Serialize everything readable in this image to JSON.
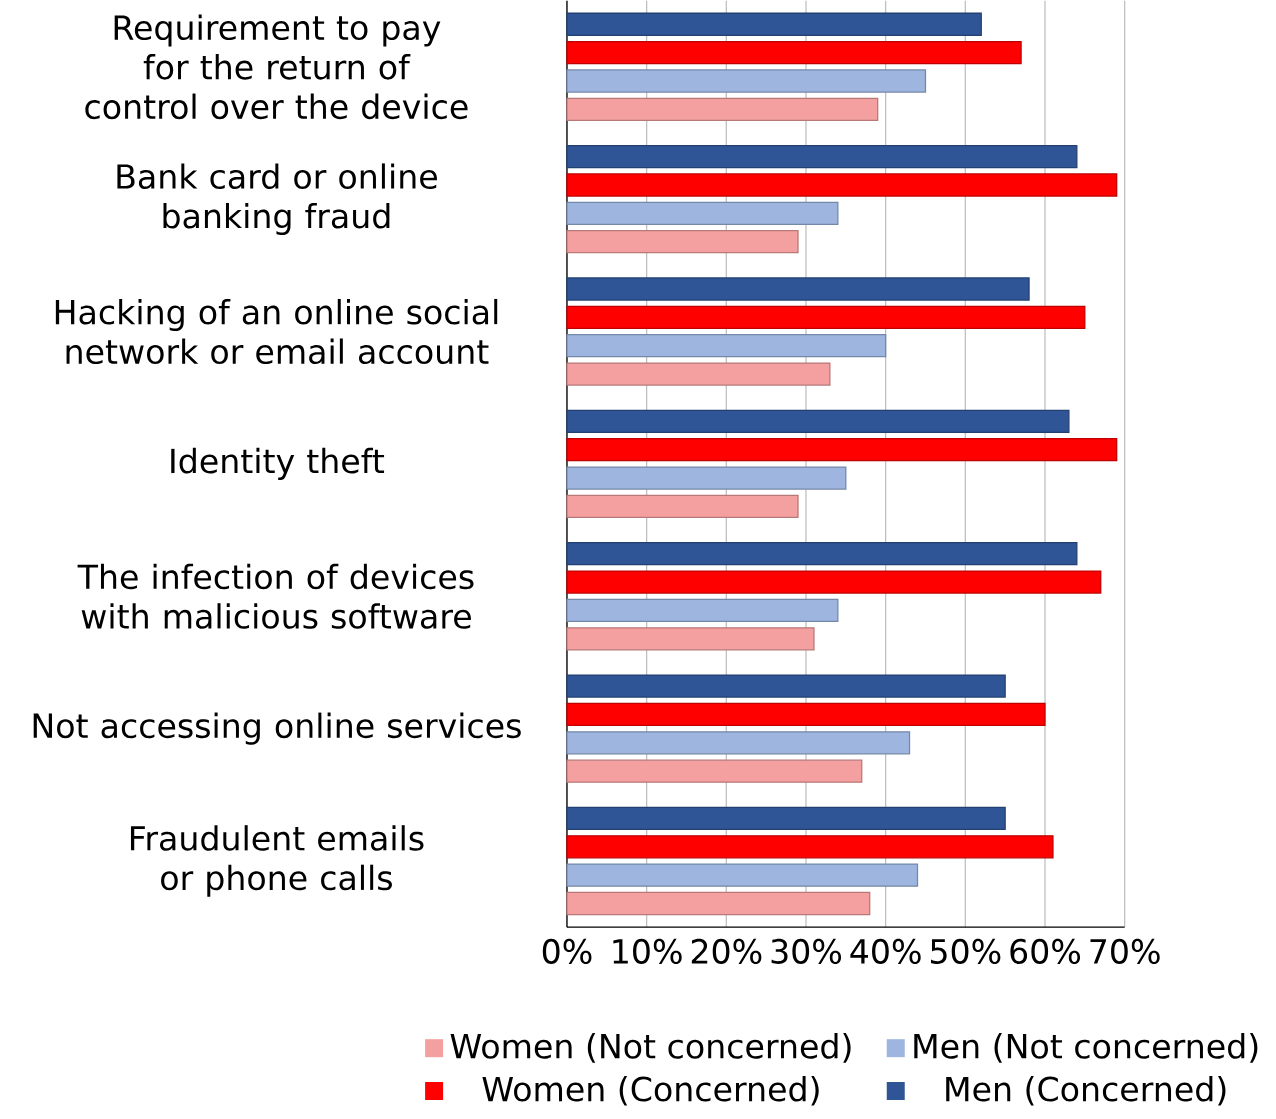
{
  "chart_data": {
    "type": "bar",
    "orientation": "horizontal",
    "categories": [
      "Requirement to pay for the return of control over the device",
      "Bank card or online banking fraud",
      "Hacking of an online social network or email account",
      "Identity theft",
      "The infection of devices with malicious software",
      "Not accessing online services",
      "Fraudulent emails or phone calls"
    ],
    "series": [
      {
        "name": "Women  (Not concerned)",
        "color": "#f4a0a0",
        "values": [
          39,
          29,
          33,
          29,
          31,
          37,
          38
        ]
      },
      {
        "name": "Men (Not concerned)",
        "color": "#9db5df",
        "values": [
          45,
          34,
          40,
          35,
          34,
          43,
          44
        ]
      },
      {
        "name": "Women (Concerned)",
        "color": "#ff0000",
        "values": [
          57,
          69,
          65,
          69,
          67,
          60,
          61
        ]
      },
      {
        "name": "Men (Concerned)",
        "color": "#2f5597",
        "values": [
          52,
          64,
          58,
          63,
          64,
          55,
          55
        ]
      }
    ],
    "xlim": [
      0,
      70
    ],
    "xticks": [
      {
        "value": 0,
        "label": "0%"
      },
      {
        "value": 10,
        "label": "10%"
      },
      {
        "value": 20,
        "label": "20%"
      },
      {
        "value": 30,
        "label": "30%"
      },
      {
        "value": 40,
        "label": "40%"
      },
      {
        "value": 50,
        "label": "50%"
      },
      {
        "value": 60,
        "label": "60%"
      },
      {
        "value": 70,
        "label": "70%"
      }
    ],
    "grid": "x",
    "legend": "bottom"
  }
}
